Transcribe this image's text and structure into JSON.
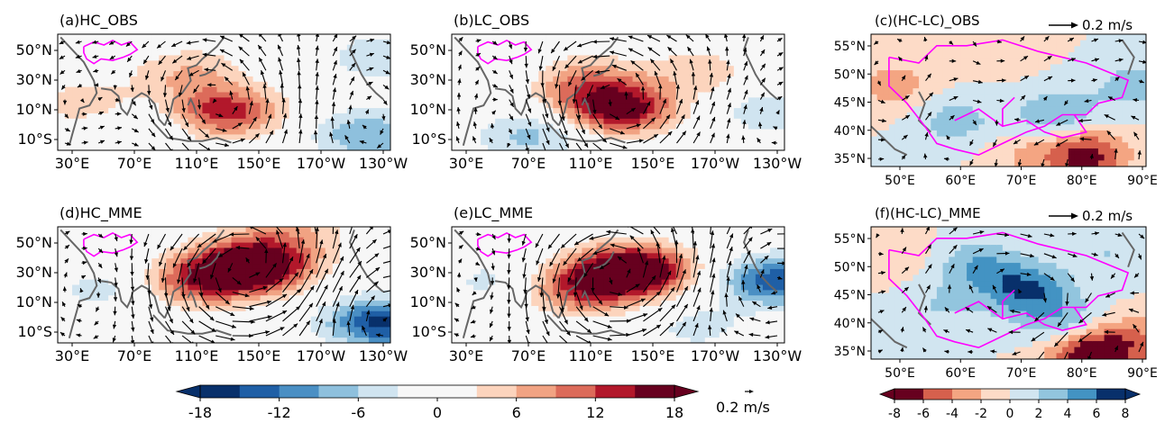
{
  "chart_data": {
    "type": "heatmap",
    "panels": [
      {
        "id": "a",
        "title": "(a)HC_OBS",
        "region": "wide",
        "ylabels": [
          "50°N",
          "30°N",
          "10°N",
          "10°S"
        ],
        "xlabels": [
          "30°E",
          "70°E",
          "110°E",
          "150°E",
          "170°W",
          "130°W"
        ],
        "blobs": [
          {
            "lon": 145,
            "lat": 10,
            "val": 14
          },
          {
            "lon": 120,
            "lat": 35,
            "val": 6
          },
          {
            "lon": 50,
            "lat": 15,
            "val": 5
          },
          {
            "lon": 250,
            "lat": 45,
            "val": -5
          },
          {
            "lon": 245,
            "lat": -5,
            "val": -9
          },
          {
            "lon": 90,
            "lat": 2,
            "val": -3
          }
        ]
      },
      {
        "id": "b",
        "title": "(b)LC_OBS",
        "region": "wide",
        "ylabels": [
          "50°N",
          "30°N",
          "10°N",
          "10°S"
        ],
        "xlabels": [
          "30°E",
          "70°E",
          "110°E",
          "150°E",
          "170°W",
          "130°W"
        ],
        "blobs": [
          {
            "lon": 145,
            "lat": 12,
            "val": 18
          },
          {
            "lon": 120,
            "lat": 30,
            "val": 8
          },
          {
            "lon": 200,
            "lat": 35,
            "val": 5
          },
          {
            "lon": 85,
            "lat": -5,
            "val": -7
          },
          {
            "lon": 60,
            "lat": 40,
            "val": -3
          },
          {
            "lon": 250,
            "lat": 10,
            "val": -5
          }
        ]
      },
      {
        "id": "d",
        "title": "(d)HC_MME",
        "region": "wide",
        "ylabels": [
          "50°N",
          "30°N",
          "10°N",
          "10°S"
        ],
        "xlabels": [
          "30°E",
          "70°E",
          "110°E",
          "150°E",
          "170°W",
          "130°W"
        ],
        "blobs": [
          {
            "lon": 165,
            "lat": 35,
            "val": 22
          },
          {
            "lon": 130,
            "lat": 25,
            "val": 12
          },
          {
            "lon": 255,
            "lat": -2,
            "val": -16
          },
          {
            "lon": 60,
            "lat": 20,
            "val": -4
          },
          {
            "lon": 190,
            "lat": 55,
            "val": 6
          }
        ]
      },
      {
        "id": "e",
        "title": "(e)LC_MME",
        "region": "wide",
        "ylabels": [
          "50°N",
          "30°N",
          "10°N",
          "10°S"
        ],
        "xlabels": [
          "30°E",
          "70°E",
          "110°E",
          "150°E",
          "170°W",
          "130°W"
        ],
        "blobs": [
          {
            "lon": 155,
            "lat": 32,
            "val": 22
          },
          {
            "lon": 120,
            "lat": 20,
            "val": 12
          },
          {
            "lon": 255,
            "lat": 25,
            "val": -14
          },
          {
            "lon": 60,
            "lat": 25,
            "val": -4
          },
          {
            "lon": 200,
            "lat": -5,
            "val": -4
          }
        ]
      },
      {
        "id": "c",
        "title": "(c)(HC-LC)_OBS",
        "region": "zoom",
        "arrow_key": "0.2 m/s",
        "ylabels": [
          "55°N",
          "50°N",
          "45°N",
          "40°N",
          "35°N"
        ],
        "xlabels": [
          "50°E",
          "60°E",
          "70°E",
          "80°E",
          "90°E"
        ],
        "blobs": [
          {
            "lon": 75,
            "lat": 43,
            "val": -4
          },
          {
            "lon": 58,
            "lat": 42,
            "val": -3
          },
          {
            "lon": 88,
            "lat": 48,
            "val": -3
          },
          {
            "lon": 48,
            "lat": 48,
            "val": 3
          },
          {
            "lon": 65,
            "lat": 55,
            "val": 2
          },
          {
            "lon": 80,
            "lat": 36,
            "val": 7
          },
          {
            "lon": 70,
            "lat": 36,
            "val": 2
          }
        ]
      },
      {
        "id": "f",
        "title": "(f)(HC-LC)_MME",
        "region": "zoom",
        "arrow_key": "0.2 m/s",
        "ylabels": [
          "55°N",
          "50°N",
          "45°N",
          "40°N",
          "35°N"
        ],
        "xlabels": [
          "50°E",
          "60°E",
          "70°E",
          "80°E",
          "90°E"
        ],
        "blobs": [
          {
            "lon": 70,
            "lat": 46,
            "val": -6
          },
          {
            "lon": 62,
            "lat": 50,
            "val": -4
          },
          {
            "lon": 76,
            "lat": 40,
            "val": -4
          },
          {
            "lon": 55,
            "lat": 43,
            "val": -2
          },
          {
            "lon": 84,
            "lat": 52,
            "val": -2
          },
          {
            "lon": 80,
            "lat": 35,
            "val": 8
          },
          {
            "lon": 88,
            "lat": 37,
            "val": 4
          },
          {
            "lon": 47,
            "lat": 52,
            "val": 2
          }
        ]
      }
    ],
    "colorbar_wide": {
      "ticks": [
        "-18",
        "-12",
        "-6",
        "0",
        "6",
        "12",
        "18"
      ],
      "colors": [
        "#08306b",
        "#1f5fa6",
        "#4a8fc4",
        "#8ec0dd",
        "#d0e4f0",
        "#f7f7f7",
        "#f7f7f7",
        "#fcd4bd",
        "#f1a383",
        "#dc6b5a",
        "#b2182b",
        "#67001f"
      ]
    },
    "colorbar_zoom": {
      "ticks": [
        "-8",
        "-6",
        "-4",
        "-2",
        "0",
        "2",
        "4",
        "6",
        "8"
      ],
      "colors": [
        "#67001f",
        "#d6604d",
        "#f4a582",
        "#fddbc7",
        "#d1e5f0",
        "#92c5de",
        "#4393c3",
        "#08306b"
      ]
    },
    "quiver_key": "0.2 m/s"
  }
}
